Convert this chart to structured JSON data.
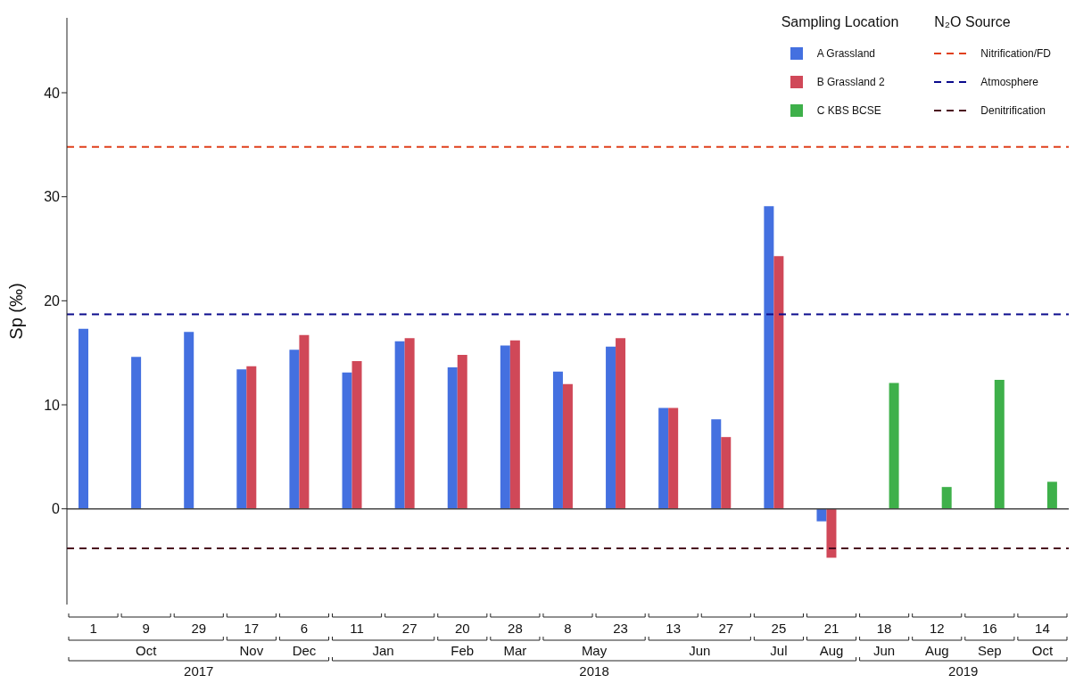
{
  "chart_data": {
    "type": "bar",
    "ylabel": "Sp (‰)",
    "categories": [
      "1",
      "9",
      "29",
      "17",
      "6",
      "11",
      "27",
      "20",
      "28",
      "8",
      "23",
      "13",
      "27",
      "25",
      "21",
      "18",
      "12",
      "16",
      "14"
    ],
    "series": [
      {
        "name": "A Grassland",
        "color": "#4470e0",
        "values": [
          17.3,
          14.6,
          17.0,
          13.4,
          15.3,
          13.1,
          16.1,
          13.6,
          15.7,
          13.2,
          15.6,
          9.7,
          8.6,
          29.1,
          -1.2,
          null,
          null,
          null,
          null
        ]
      },
      {
        "name": "B Grassland 2",
        "color": "#d04858",
        "values": [
          null,
          null,
          null,
          13.7,
          16.7,
          14.2,
          16.4,
          14.8,
          16.2,
          12.0,
          16.4,
          9.7,
          6.9,
          24.3,
          -4.7,
          null,
          null,
          null,
          null
        ]
      },
      {
        "name": "C KBS BCSE",
        "color": "#3eb04a",
        "values": [
          null,
          null,
          null,
          null,
          null,
          null,
          null,
          null,
          null,
          null,
          null,
          null,
          null,
          null,
          null,
          12.1,
          2.1,
          12.4,
          2.6
        ]
      }
    ],
    "ylim": [
      -9.2,
      47.2
    ],
    "yticks": [
      0,
      10,
      20,
      30,
      40
    ],
    "legend": "top right",
    "legend_title": "Sampling Location",
    "ref_lines": [
      {
        "axis": "y",
        "value": 34.8,
        "label": "Nitrification/FD",
        "color": "#e0401c",
        "line_style": "dashed"
      },
      {
        "axis": "y",
        "value": 18.7,
        "label": "Atmosphere",
        "color": "#0a0a8c",
        "line_style": "dashed"
      },
      {
        "axis": "y",
        "value": -3.8,
        "label": "Denitrification",
        "color": "#4a0a1e",
        "line_style": "dashed"
      },
      {
        "axis": "y",
        "value": 0,
        "color": "#444444",
        "line_style": "solid"
      }
    ],
    "annotations": [
      "N₂O Source",
      "Oct",
      "Nov",
      "Dec",
      "Jan",
      "Feb",
      "Mar",
      "May",
      "Jun",
      "Jul",
      "Aug",
      "Jun",
      "Aug",
      "Sep",
      "Oct",
      "2017",
      "2018",
      "2019"
    ]
  }
}
